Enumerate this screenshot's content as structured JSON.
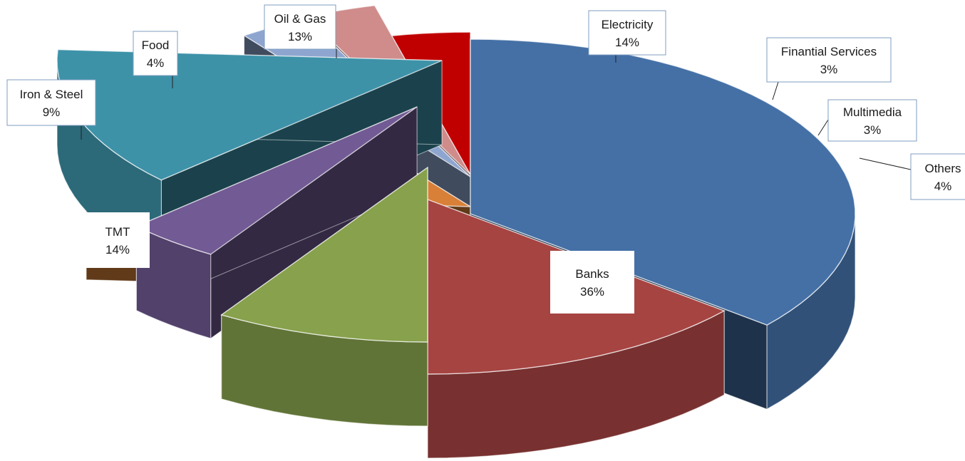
{
  "chart_data": {
    "type": "pie",
    "variant": "3d-exploded",
    "title": "",
    "legend": "none",
    "data_labels": "category-and-percent",
    "slices": [
      {
        "label": "Banks",
        "value": 36,
        "display": "36%",
        "color": "#4470a6"
      },
      {
        "label": "TMT",
        "value": 14,
        "display": "14%",
        "color": "#a64442"
      },
      {
        "label": "Iron & Steel",
        "value": 9,
        "display": "9%",
        "color": "#87a14c"
      },
      {
        "label": "Food",
        "value": 4,
        "display": "4%",
        "color": "#725a94"
      },
      {
        "label": "Oil & Gas",
        "value": 13,
        "display": "13%",
        "color": "#3d92a8"
      },
      {
        "label": "Electricity",
        "value": 14,
        "display": "14%",
        "color": "#d88038"
      },
      {
        "label": "Finantial Services",
        "value": 3,
        "display": "3%",
        "color": "#8ea6cf"
      },
      {
        "label": "Multimedia",
        "value": 3,
        "display": "3%",
        "color": "#cf8c8b"
      },
      {
        "label": "Others",
        "value": 4,
        "display": "4%",
        "color": "#c00000"
      }
    ]
  }
}
